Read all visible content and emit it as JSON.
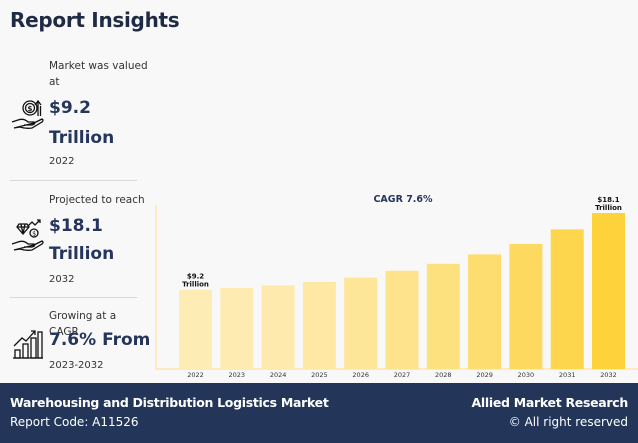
{
  "header": {
    "title": "Report Insights"
  },
  "insights": [
    {
      "icon": "money-hand-icon",
      "label": "Market was valued at",
      "value_line1": "$9.2",
      "value_line2": "Trillion",
      "year": "2022"
    },
    {
      "icon": "diamond-hand-icon",
      "label": "Projected to reach",
      "value_line1": "$18.1",
      "value_line2": "Trillion",
      "year": "2032"
    },
    {
      "icon": "growth-chart-icon",
      "label": "Growing at a CAGR",
      "value_line1": "7.6% From",
      "year": "2023-2032"
    }
  ],
  "footer": {
    "market_name": "Warehousing and Distribution Logistics Market",
    "report_code": "Report Code: A11526",
    "brand": "Allied Market Research",
    "copyright": "© All right reserved"
  },
  "colors": {
    "navy": "#233659",
    "bar_light": "#feeab0",
    "bar_dark": "#fdd23a",
    "axis": "#fde3a0"
  },
  "chart_data": {
    "type": "bar",
    "title": "CAGR 7.6%",
    "xlabel": "",
    "ylabel": "",
    "categories": [
      "2022",
      "2023",
      "2024",
      "2025",
      "2026",
      "2027",
      "2028",
      "2029",
      "2030",
      "2031",
      "2032"
    ],
    "values": [
      9.2,
      9.4,
      9.7,
      10.1,
      10.6,
      11.4,
      12.2,
      13.3,
      14.5,
      16.2,
      18.1
    ],
    "units": "USD Trillion",
    "ylim": [
      0,
      22
    ],
    "grid": false,
    "annotations": [
      {
        "category": "2022",
        "line1": "$9.2",
        "line2": "Trillion"
      },
      {
        "category": "2032",
        "line1": "$18.1",
        "line2": "Trillion"
      }
    ]
  }
}
